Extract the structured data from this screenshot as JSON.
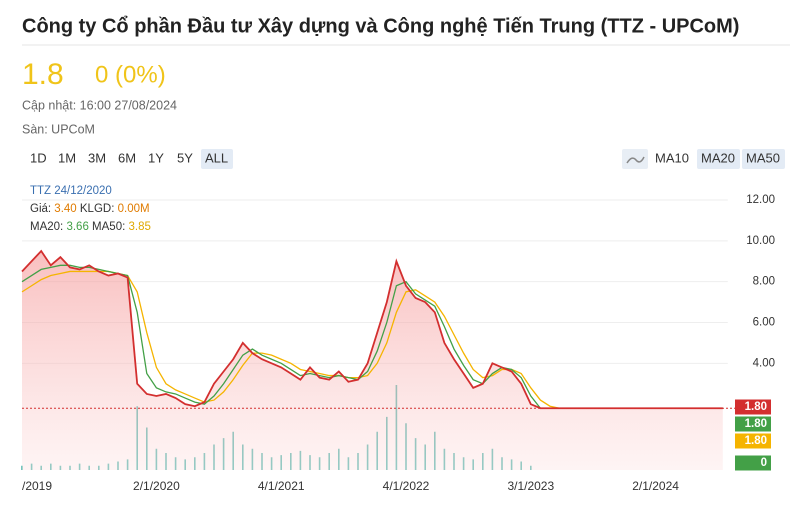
{
  "header": {
    "title": "Công ty Cổ phần Đầu tư Xây dựng và Công nghệ Tiến Trung (TTZ - UPCoM)",
    "price": "1.8",
    "change": "0 (0%)",
    "updated": "Cập nhật: 16:00 27/08/2024",
    "exchange": "Sàn: UPCoM"
  },
  "ranges": [
    "1D",
    "1M",
    "3M",
    "6M",
    "1Y",
    "5Y",
    "ALL"
  ],
  "ma_buttons": [
    "MA10",
    "MA20",
    "MA50"
  ],
  "tooltip": {
    "date": "TTZ 24/12/2020",
    "price_label": "Giá:",
    "price": "3.40",
    "vol_label": "KLGD:",
    "vol": "0.00M",
    "ma20_label": "MA20:",
    "ma20": "3.66",
    "ma50_label": "MA50:",
    "ma50": "3.85"
  },
  "chart_data": {
    "type": "line",
    "categories": [
      null,
      null,
      "/2019",
      null,
      null,
      null,
      null,
      null,
      null,
      null,
      null,
      null,
      null,
      null,
      "2/1/2020",
      null,
      null,
      null,
      null,
      null,
      null,
      null,
      null,
      null,
      null,
      null,
      null,
      "4/1/2021",
      null,
      null,
      null,
      null,
      null,
      null,
      null,
      null,
      null,
      null,
      null,
      null,
      "4/1/2022",
      null,
      null,
      null,
      null,
      null,
      null,
      null,
      null,
      null,
      null,
      null,
      null,
      "3/1/2023",
      null,
      null,
      null,
      null,
      null,
      null,
      null,
      null,
      null,
      null,
      null,
      null,
      "2/1/2024",
      null,
      null,
      null,
      null,
      null,
      null,
      null
    ],
    "ylim": [
      0,
      12
    ],
    "yticks": [
      {
        "value": 4,
        "label": "4.00"
      },
      {
        "value": 6,
        "label": "6.00"
      },
      {
        "value": 8,
        "label": "8.00"
      },
      {
        "value": 10,
        "label": "10.00"
      },
      {
        "value": 12,
        "label": "12.00"
      }
    ],
    "grid": true,
    "series": [
      {
        "name": "Giá",
        "color": "#d32f2f",
        "last_label": "1.80",
        "values": [
          8.5,
          9.0,
          9.5,
          8.8,
          9.2,
          8.7,
          8.6,
          8.8,
          8.5,
          8.3,
          8.4,
          8.2,
          3.0,
          2.5,
          2.4,
          2.5,
          2.3,
          2.0,
          1.9,
          2.1,
          3.0,
          3.6,
          4.2,
          5.0,
          4.5,
          4.2,
          4.0,
          3.8,
          3.5,
          3.2,
          3.8,
          3.3,
          3.2,
          3.6,
          3.1,
          3.2,
          4.0,
          5.5,
          7.0,
          9.0,
          7.8,
          7.2,
          7.0,
          6.5,
          5.0,
          4.2,
          3.5,
          2.8,
          3.0,
          4.0,
          3.8,
          3.6,
          3.0,
          2.0,
          1.8,
          1.8,
          1.8,
          1.8,
          1.8,
          1.8,
          1.8,
          1.8,
          1.8,
          1.8,
          1.8,
          1.8,
          1.8,
          1.8,
          1.8,
          1.8,
          1.8,
          1.8,
          1.8,
          1.8
        ]
      },
      {
        "name": "MA20",
        "color": "#43a047",
        "last_label": "1.80",
        "values": [
          8.0,
          8.3,
          8.6,
          8.7,
          8.8,
          8.8,
          8.7,
          8.7,
          8.6,
          8.5,
          8.4,
          8.3,
          6.5,
          3.5,
          2.8,
          2.6,
          2.5,
          2.3,
          2.1,
          2.0,
          2.4,
          3.0,
          3.7,
          4.4,
          4.7,
          4.4,
          4.2,
          4.0,
          3.7,
          3.4,
          3.5,
          3.4,
          3.3,
          3.4,
          3.3,
          3.2,
          3.6,
          4.6,
          6.0,
          7.8,
          8.0,
          7.4,
          7.1,
          6.8,
          5.8,
          4.7,
          3.9,
          3.2,
          3.0,
          3.5,
          3.8,
          3.7,
          3.3,
          2.4,
          1.8,
          1.8,
          1.8,
          1.8,
          1.8,
          1.8,
          1.8,
          1.8,
          1.8,
          1.8,
          1.8,
          1.8,
          1.8,
          1.8,
          1.8,
          1.8,
          1.8,
          1.8,
          1.8,
          1.8
        ]
      },
      {
        "name": "MA50",
        "color": "#f5b400",
        "last_label": "1.80",
        "values": [
          7.5,
          7.8,
          8.1,
          8.3,
          8.4,
          8.5,
          8.5,
          8.5,
          8.5,
          8.5,
          8.4,
          8.3,
          7.5,
          5.5,
          3.8,
          3.0,
          2.7,
          2.5,
          2.3,
          2.1,
          2.2,
          2.6,
          3.2,
          3.9,
          4.5,
          4.5,
          4.4,
          4.2,
          4.0,
          3.7,
          3.6,
          3.5,
          3.4,
          3.4,
          3.3,
          3.3,
          3.4,
          4.0,
          5.0,
          6.5,
          7.5,
          7.6,
          7.3,
          7.0,
          6.3,
          5.4,
          4.5,
          3.7,
          3.3,
          3.4,
          3.7,
          3.7,
          3.5,
          2.8,
          2.2,
          1.9,
          1.8,
          1.8,
          1.8,
          1.8,
          1.8,
          1.8,
          1.8,
          1.8,
          1.8,
          1.8,
          1.8,
          1.8,
          1.8,
          1.8,
          1.8,
          1.8,
          1.8,
          1.8
        ]
      }
    ],
    "volume": {
      "color": "#26a69a",
      "lim": [
        0,
        40
      ],
      "last_label": "0",
      "values": [
        2,
        3,
        2,
        3,
        2,
        2,
        3,
        2,
        2,
        3,
        4,
        5,
        30,
        20,
        10,
        8,
        6,
        5,
        6,
        8,
        12,
        15,
        18,
        12,
        10,
        8,
        6,
        7,
        8,
        9,
        7,
        6,
        8,
        10,
        6,
        8,
        12,
        18,
        25,
        40,
        22,
        15,
        12,
        18,
        10,
        8,
        6,
        5,
        8,
        10,
        6,
        5,
        4,
        2,
        0,
        0,
        0,
        0,
        0,
        0,
        0,
        0,
        0,
        0,
        0,
        0,
        0,
        0,
        0,
        0,
        0,
        0,
        0,
        0
      ]
    }
  }
}
